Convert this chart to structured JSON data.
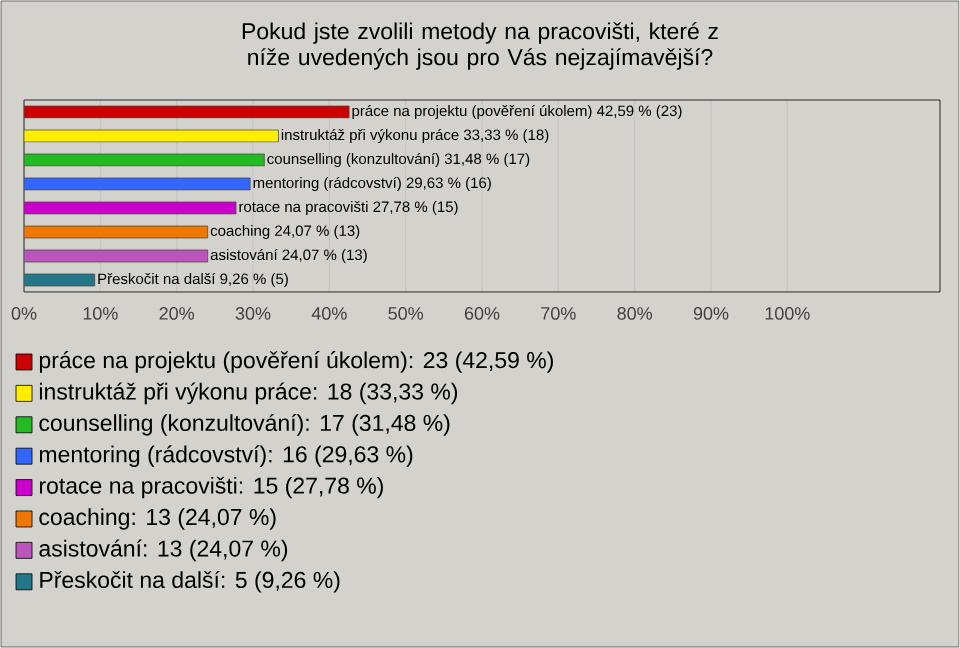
{
  "chart_data": {
    "type": "bar",
    "orientation": "horizontal",
    "title": "Pokud jste zvolili metody na pracovišti, které z níže uvedených jsou pro Vás nejzajímavější?",
    "categories": [
      "práce na projektu (pověření úkolem) 42,59 % (23)",
      "instruktáž při výkonu práce 33,33 % (18)",
      "counselling (konzultování) 31,48 % (17)",
      "mentoring (rádcovství) 29,63 % (16)",
      "rotace na pracovišti 27,78 % (15)",
      "coaching 24,07 % (13)",
      "asistování 24,07 % (13)",
      "Přeskočit na další 9,26 % (5)"
    ],
    "values": [
      42.59,
      33.33,
      31.48,
      29.63,
      27.78,
      24.07,
      24.07,
      9.26
    ],
    "colors": [
      "#cc0000",
      "#ffee00",
      "#22bb22",
      "#3366ff",
      "#cc00cc",
      "#ee7700",
      "#bb55bb",
      "#227788"
    ],
    "xlim": [
      0,
      120
    ],
    "xticks": [
      {
        "value": 0,
        "label": "0%"
      },
      {
        "value": 10,
        "label": "10%"
      },
      {
        "value": 20,
        "label": "20%"
      },
      {
        "value": 30,
        "label": "30%"
      },
      {
        "value": 40,
        "label": "40%"
      },
      {
        "value": 50,
        "label": "50%"
      },
      {
        "value": 60,
        "label": "60%"
      },
      {
        "value": 70,
        "label": "70%"
      },
      {
        "value": 80,
        "label": "80%"
      },
      {
        "value": 90,
        "label": "90%"
      },
      {
        "value": 100,
        "label": "100%"
      }
    ],
    "grid": "x",
    "annotations": [
      "práce na projektu (pověření úkolem): 23 (42,59 %)",
      "instruktáž při výkonu práce: 18 (33,33 %)",
      "counselling (konzultování): 17 (31,48 %)",
      "mentoring (rádcovství): 16 (29,63 %)",
      "rotace na pracovišti: 15 (27,78 %)",
      "coaching: 13 (24,07 %)",
      "asistování: 13 (24,07 %)",
      "Přeskočit na další: 5 (9,26 %)"
    ]
  }
}
